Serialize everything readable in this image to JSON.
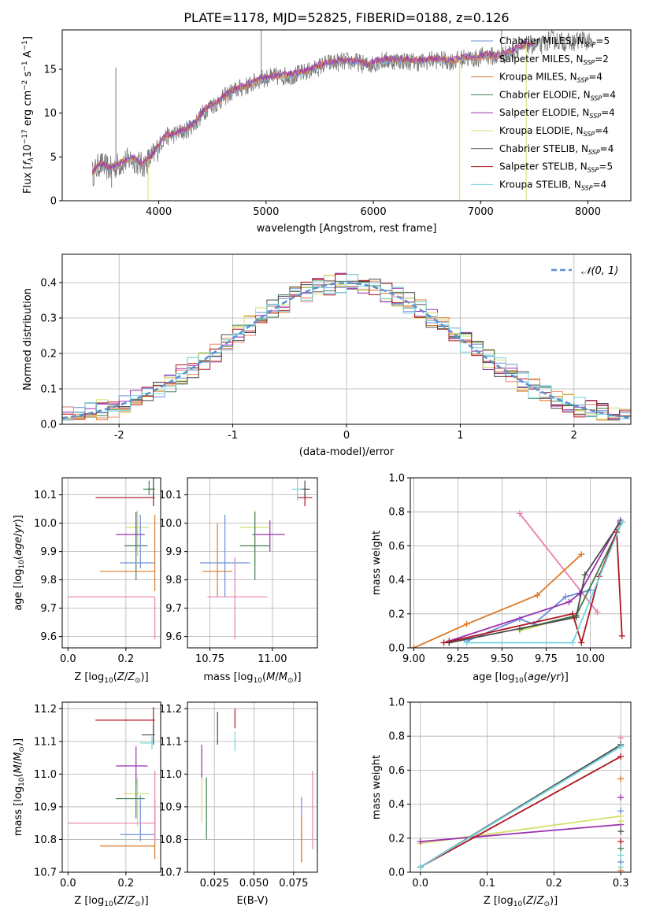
{
  "figure_title": "PLATE=1178, MJD=52825, FIBERID=0188, z=0.126",
  "colors": {
    "chabrier_miles": "#6c8ed8",
    "salpeter_miles": "#e8896b",
    "kroupa_miles": "#dd7a28",
    "chabrier_elodie": "#3f7e52",
    "salpeter_elodie": "#9b2fb0",
    "kroupa_elodie": "#d4e06a",
    "chabrier_stelib": "#4a4a4a",
    "salpeter_stelib": "#b0141e",
    "kroupa_stelib": "#72d4de",
    "normal_curve": "#5a8fd0",
    "pink": "#e87fb0"
  },
  "chart_data": [
    {
      "type": "line",
      "panel": "spectrum",
      "xlabel": "wavelength [Angstrom, rest frame]",
      "ylabel": "Flux [f_λ10^-17 erg cm^-2 s^-1 A^-1]",
      "xlim": [
        3100,
        8400
      ],
      "ylim": [
        0,
        19.5
      ],
      "xticks": [
        4000,
        5000,
        6000,
        7000,
        8000
      ],
      "yticks": [
        0,
        5,
        10,
        15
      ],
      "legend_position": "top-right",
      "legend": [
        {
          "key": "chabrier_miles",
          "label": "Chabrier MILES, N",
          "sub": "SSP",
          "value": "=5"
        },
        {
          "key": "salpeter_miles",
          "label": "Salpeter MILES, N",
          "sub": "SSP",
          "value": "=2"
        },
        {
          "key": "kroupa_miles",
          "label": "Kroupa MILES, N",
          "sub": "SSP",
          "value": "=4"
        },
        {
          "key": "chabrier_elodie",
          "label": "Chabrier ELODIE, N",
          "sub": "SSP",
          "value": "=4"
        },
        {
          "key": "salpeter_elodie",
          "label": "Salpeter ELODIE, N",
          "sub": "SSP",
          "value": "=4"
        },
        {
          "key": "kroupa_elodie",
          "label": "Kroupa ELODIE, N",
          "sub": "SSP",
          "value": "=4"
        },
        {
          "key": "chabrier_stelib",
          "label": "Chabrier STELIB, N",
          "sub": "SSP",
          "value": "=4"
        },
        {
          "key": "salpeter_stelib",
          "label": "Salpeter STELIB, N",
          "sub": "SSP",
          "value": "=5"
        },
        {
          "key": "kroupa_stelib",
          "label": "Kroupa STELIB, N",
          "sub": "SSP",
          "value": "=4"
        }
      ],
      "continuum": [
        [
          3380,
          3.0
        ],
        [
          3450,
          4.2
        ],
        [
          3550,
          3.6
        ],
        [
          3650,
          4.3
        ],
        [
          3750,
          4.8
        ],
        [
          3850,
          4.0
        ],
        [
          3950,
          5.2
        ],
        [
          4050,
          7.2
        ],
        [
          4150,
          7.6
        ],
        [
          4250,
          8.0
        ],
        [
          4350,
          9.0
        ],
        [
          4450,
          10.6
        ],
        [
          4550,
          11.2
        ],
        [
          4650,
          12.2
        ],
        [
          4750,
          12.8
        ],
        [
          4850,
          13.2
        ],
        [
          4950,
          13.9
        ],
        [
          5050,
          14.1
        ],
        [
          5150,
          14.2
        ],
        [
          5250,
          14.3
        ],
        [
          5350,
          14.6
        ],
        [
          5450,
          15.0
        ],
        [
          5550,
          15.6
        ],
        [
          5650,
          15.8
        ],
        [
          5750,
          15.9
        ],
        [
          5850,
          15.8
        ],
        [
          5950,
          15.4
        ],
        [
          6050,
          15.9
        ],
        [
          6150,
          16.0
        ],
        [
          6250,
          16.0
        ],
        [
          6350,
          15.9
        ],
        [
          6450,
          15.8
        ],
        [
          6550,
          16.1
        ],
        [
          6650,
          16.0
        ],
        [
          6750,
          15.9
        ],
        [
          6850,
          16.3
        ],
        [
          6950,
          16.2
        ],
        [
          7050,
          16.6
        ],
        [
          7150,
          16.4
        ],
        [
          7250,
          16.8
        ],
        [
          7350,
          17.4
        ],
        [
          7450,
          17.8
        ],
        [
          7550,
          17.6
        ],
        [
          7650,
          18.4
        ],
        [
          7750,
          18.2
        ],
        [
          7850,
          18.0
        ],
        [
          7950,
          18.5
        ],
        [
          8050,
          17.8
        ]
      ],
      "spikes": [
        [
          3600,
          15.2
        ],
        [
          3900,
          0
        ],
        [
          4955,
          19.5
        ],
        [
          6805,
          0
        ],
        [
          7195,
          19.5
        ],
        [
          7425,
          0
        ],
        [
          3560,
          1.5
        ]
      ]
    },
    {
      "type": "line",
      "panel": "residual_histogram",
      "xlabel": "(data-model)/error",
      "ylabel": "Normed distribution",
      "xlim": [
        -2.5,
        2.5
      ],
      "ylim": [
        0,
        0.48
      ],
      "xticks": [
        -2,
        -1,
        0,
        1,
        2
      ],
      "yticks": [
        0.0,
        0.1,
        0.2,
        0.3,
        0.4
      ],
      "legend_position": "top-right",
      "legend_label": "𝒩(0, 1)",
      "bin_width": 0.1
    },
    {
      "type": "scatter",
      "panel": "age_vs_Z",
      "xlabel": "Z [log10(Z/Z⊙)]",
      "ylabel": "age  [log10(age/yr)]",
      "xlim": [
        -0.02,
        0.32
      ],
      "ylim": [
        9.56,
        10.16
      ],
      "xticks": [
        0.0,
        0.2
      ],
      "yticks": [
        9.6,
        9.7,
        9.8,
        9.9,
        10.0,
        10.1
      ],
      "points": [
        {
          "key": "salpeter_stelib",
          "x": 0.295,
          "y": 10.09,
          "xerr": [
            0.2,
            0.005
          ],
          "yerr": [
            0.03,
            0.02
          ]
        },
        {
          "key": "chabrier_stelib",
          "x": 0.295,
          "y": 10.12,
          "xerr": [
            0.02,
            0.005
          ],
          "yerr": [
            0.03,
            0.04
          ]
        },
        {
          "key": "chabrier_elodie",
          "x": 0.28,
          "y": 10.12,
          "xerr": [
            0.02,
            0.02
          ],
          "yerr": [
            0.02,
            0.03
          ]
        },
        {
          "key": "kroupa_elodie",
          "x": 0.24,
          "y": 9.985,
          "xerr": [
            0.04,
            0.04
          ],
          "yerr": [
            0.1,
            0.06
          ]
        },
        {
          "key": "salpeter_elodie",
          "x": 0.235,
          "y": 9.96,
          "xerr": [
            0.07,
            0.03
          ],
          "yerr": [
            0.06,
            0.08
          ]
        },
        {
          "key": "chabrier_elodie",
          "x": 0.235,
          "y": 9.92,
          "xerr": [
            0.04,
            0.04
          ],
          "yerr": [
            0.12,
            0.12
          ]
        },
        {
          "key": "chabrier_miles",
          "x": 0.25,
          "y": 9.86,
          "xerr": [
            0.07,
            0.05
          ],
          "yerr": [
            0.02,
            0.17
          ]
        },
        {
          "key": "kroupa_miles",
          "x": 0.3,
          "y": 9.83,
          "xerr": [
            0.19,
            0.0
          ],
          "yerr": [
            0.07,
            0.2
          ]
        },
        {
          "key": "pink",
          "x": 0.3,
          "y": 9.74,
          "xerr": [
            0.3,
            0.0
          ],
          "yerr": [
            0.15,
            0.0
          ]
        }
      ]
    },
    {
      "type": "scatter",
      "panel": "age_vs_mass",
      "xlabel": "mass [log10(M/M⊙)]",
      "ylabel": "",
      "xlim": [
        10.66,
        11.18
      ],
      "ylim": [
        9.56,
        10.16
      ],
      "xticks": [
        10.75,
        11.0
      ],
      "yticks": [
        9.6,
        9.7,
        9.8,
        9.9,
        10.0,
        10.1
      ],
      "points": [
        {
          "key": "salpeter_stelib",
          "x": 11.13,
          "y": 10.09,
          "xerr": [
            0.03,
            0.03
          ],
          "yerr": [
            0.03,
            0.02
          ]
        },
        {
          "key": "chabrier_stelib",
          "x": 11.13,
          "y": 10.12,
          "xerr": [
            0.02,
            0.02
          ],
          "yerr": [
            0.03,
            0.03
          ]
        },
        {
          "key": "kroupa_stelib",
          "x": 11.1,
          "y": 10.12,
          "xerr": [
            0.02,
            0.02
          ],
          "yerr": [
            0.04,
            0.04
          ]
        },
        {
          "key": "salpeter_elodie",
          "x": 10.99,
          "y": 9.96,
          "xerr": [
            0.07,
            0.06
          ],
          "yerr": [
            0.06,
            0.05
          ]
        },
        {
          "key": "kroupa_elodie",
          "x": 10.93,
          "y": 9.985,
          "xerr": [
            0.06,
            0.06
          ],
          "yerr": [
            0.13,
            0.06
          ]
        },
        {
          "key": "chabrier_elodie",
          "x": 10.93,
          "y": 9.92,
          "xerr": [
            0.06,
            0.06
          ],
          "yerr": [
            0.12,
            0.12
          ]
        },
        {
          "key": "chabrier_miles",
          "x": 10.81,
          "y": 9.86,
          "xerr": [
            0.1,
            0.1
          ],
          "yerr": [
            0.12,
            0.17
          ]
        },
        {
          "key": "kroupa_miles",
          "x": 10.78,
          "y": 9.83,
          "xerr": [
            0.06,
            0.06
          ],
          "yerr": [
            0.09,
            0.17
          ]
        },
        {
          "key": "pink",
          "x": 10.85,
          "y": 9.74,
          "xerr": [
            0.11,
            0.13
          ],
          "yerr": [
            0.15,
            0.14
          ]
        }
      ]
    },
    {
      "type": "line",
      "panel": "mass_weight_vs_age",
      "xlabel": "age  [log10(age/yr)]",
      "ylabel": "mass weight",
      "xlim": [
        8.98,
        10.23
      ],
      "ylim": [
        0.0,
        1.0
      ],
      "xticks": [
        9.0,
        9.25,
        9.5,
        9.75,
        10.0
      ],
      "yticks": [
        0.0,
        0.2,
        0.4,
        0.6,
        0.8,
        1.0
      ],
      "series": [
        {
          "key": "pink",
          "x": [
            9.6,
            10.04
          ],
          "y": [
            0.79,
            0.21
          ]
        },
        {
          "key": "kroupa_miles",
          "x": [
            9.0,
            9.3,
            9.7,
            9.95
          ],
          "y": [
            0.0,
            0.14,
            0.31,
            0.55
          ]
        },
        {
          "key": "chabrier_miles",
          "x": [
            9.3,
            9.6,
            9.68,
            9.86,
            10.0
          ],
          "y": [
            0.04,
            0.17,
            0.14,
            0.3,
            0.34
          ]
        },
        {
          "key": "kroupa_elodie",
          "x": [
            9.6,
            9.92,
            10.18
          ],
          "y": [
            0.1,
            0.19,
            0.74
          ]
        },
        {
          "key": "chabrier_elodie",
          "x": [
            9.6,
            9.92,
            10.18
          ],
          "y": [
            0.11,
            0.19,
            0.74
          ]
        },
        {
          "key": "salpeter_elodie",
          "x": [
            9.2,
            9.88,
            9.94,
            10.17
          ],
          "y": [
            0.04,
            0.27,
            0.32,
            0.75
          ]
        },
        {
          "key": "chabrier_stelib",
          "x": [
            9.2,
            9.92,
            9.97,
            10.17
          ],
          "y": [
            0.03,
            0.18,
            0.43,
            0.74
          ]
        },
        {
          "key": "salpeter_stelib",
          "x": [
            9.17,
            9.9,
            9.95,
            10.05,
            10.15,
            10.18
          ],
          "y": [
            0.03,
            0.2,
            0.03,
            0.42,
            0.68,
            0.07
          ]
        },
        {
          "key": "kroupa_stelib",
          "x": [
            9.3,
            9.9,
            10.18
          ],
          "y": [
            0.03,
            0.03,
            0.74
          ]
        }
      ]
    },
    {
      "type": "scatter",
      "panel": "mass_vs_Z",
      "xlabel": "Z [log10(Z/Z⊙)]",
      "ylabel": "mass [log10(M/M⊙)]",
      "xlim": [
        -0.02,
        0.32
      ],
      "ylim": [
        10.7,
        11.22
      ],
      "xticks": [
        0.0,
        0.2
      ],
      "yticks": [
        10.7,
        10.8,
        10.9,
        11.0,
        11.1,
        11.2
      ],
      "points": [
        {
          "key": "salpeter_stelib",
          "x": 0.295,
          "y": 11.165,
          "xerr": [
            0.2,
            0.005
          ],
          "yerr": [
            0.04,
            0.04
          ]
        },
        {
          "key": "chabrier_stelib",
          "x": 0.295,
          "y": 11.12,
          "xerr": [
            0.04,
            0.005
          ],
          "yerr": [
            0.03,
            0.03
          ]
        },
        {
          "key": "kroupa_stelib",
          "x": 0.29,
          "y": 11.095,
          "xerr": [
            0.04,
            0.01
          ],
          "yerr": [
            0.02,
            0.02
          ]
        },
        {
          "key": "salpeter_elodie",
          "x": 0.235,
          "y": 11.025,
          "xerr": [
            0.07,
            0.04
          ],
          "yerr": [
            0.06,
            0.06
          ]
        },
        {
          "key": "kroupa_elodie",
          "x": 0.24,
          "y": 10.94,
          "xerr": [
            0.05,
            0.04
          ],
          "yerr": [
            0.1,
            0.05
          ]
        },
        {
          "key": "chabrier_elodie",
          "x": 0.235,
          "y": 10.925,
          "xerr": [
            0.07,
            0.03
          ],
          "yerr": [
            0.06,
            0.06
          ]
        },
        {
          "key": "chabrier_miles",
          "x": 0.25,
          "y": 10.815,
          "xerr": [
            0.07,
            0.05
          ],
          "yerr": [
            0.02,
            0.12
          ]
        },
        {
          "key": "kroupa_miles",
          "x": 0.3,
          "y": 10.78,
          "xerr": [
            0.19,
            0.0
          ],
          "yerr": [
            0.04,
            0.14
          ]
        },
        {
          "key": "pink",
          "x": 0.3,
          "y": 10.85,
          "xerr": [
            0.3,
            0.0
          ],
          "yerr": [
            0.06,
            0.16
          ]
        }
      ]
    },
    {
      "type": "scatter",
      "panel": "mass_vs_ebv",
      "xlabel": "E(B-V)",
      "ylabel": "",
      "xlim": [
        0.008,
        0.09
      ],
      "ylim": [
        10.7,
        11.22
      ],
      "xticks": [
        0.025,
        0.05,
        0.075
      ],
      "xticklabels": [
        "0.025",
        "0.050",
        "0.075"
      ],
      "yticks": [
        10.7,
        10.8,
        10.9,
        11.0,
        11.1,
        11.2
      ],
      "points": [
        {
          "key": "salpeter_stelib",
          "x": 0.038,
          "y": 11.17,
          "yerr": [
            0.03,
            0.03
          ]
        },
        {
          "key": "chabrier_stelib",
          "x": 0.027,
          "y": 11.14,
          "yerr": [
            0.05,
            0.05
          ]
        },
        {
          "key": "kroupa_stelib",
          "x": 0.038,
          "y": 11.1,
          "yerr": [
            0.03,
            0.03
          ]
        },
        {
          "key": "salpeter_elodie",
          "x": 0.017,
          "y": 11.03,
          "yerr": [
            0.05,
            0.06
          ]
        },
        {
          "key": "kroupa_elodie",
          "x": 0.017,
          "y": 10.91,
          "yerr": [
            0.06,
            0.08
          ]
        },
        {
          "key": "chabrier_elodie",
          "x": 0.02,
          "y": 10.89,
          "yerr": [
            0.09,
            0.1
          ]
        },
        {
          "key": "chabrier_miles",
          "x": 0.08,
          "y": 10.83,
          "yerr": [
            0.1,
            0.1
          ]
        },
        {
          "key": "kroupa_miles",
          "x": 0.08,
          "y": 10.8,
          "yerr": [
            0.07,
            0.07
          ]
        },
        {
          "key": "pink",
          "x": 0.087,
          "y": 10.89,
          "yerr": [
            0.12,
            0.12
          ]
        }
      ]
    },
    {
      "type": "line",
      "panel": "mass_weight_vs_Z",
      "xlabel": "Z [log10(Z/Z⊙)]",
      "ylabel": "mass weight",
      "xlim": [
        -0.015,
        0.315
      ],
      "ylim": [
        0.0,
        1.0
      ],
      "xticks": [
        0.0,
        0.1,
        0.2,
        0.3
      ],
      "yticks": [
        0.0,
        0.2,
        0.4,
        0.6,
        0.8,
        1.0
      ],
      "series": [
        {
          "key": "kroupa_elodie",
          "x": [
            0.0,
            0.3
          ],
          "y": [
            0.17,
            0.33
          ]
        },
        {
          "key": "salpeter_elodie",
          "x": [
            0.0,
            0.3
          ],
          "y": [
            0.18,
            0.28
          ]
        },
        {
          "key": "chabrier_elodie",
          "x": [
            0.0,
            0.3
          ],
          "y": [
            0.03,
            0.74
          ]
        },
        {
          "key": "chabrier_stelib",
          "x": [
            0.0,
            0.3
          ],
          "y": [
            0.03,
            0.75
          ]
        },
        {
          "key": "salpeter_stelib",
          "x": [
            0.0,
            0.3
          ],
          "y": [
            0.03,
            0.68
          ]
        },
        {
          "key": "kroupa_stelib",
          "x": [
            0.0,
            0.3
          ],
          "y": [
            0.03,
            0.74
          ]
        }
      ],
      "markers_at_0_3": [
        0.79,
        0.55,
        0.44,
        0.36,
        0.3,
        0.24,
        0.18,
        0.14,
        0.1,
        0.06,
        0.03,
        0.01
      ]
    }
  ]
}
